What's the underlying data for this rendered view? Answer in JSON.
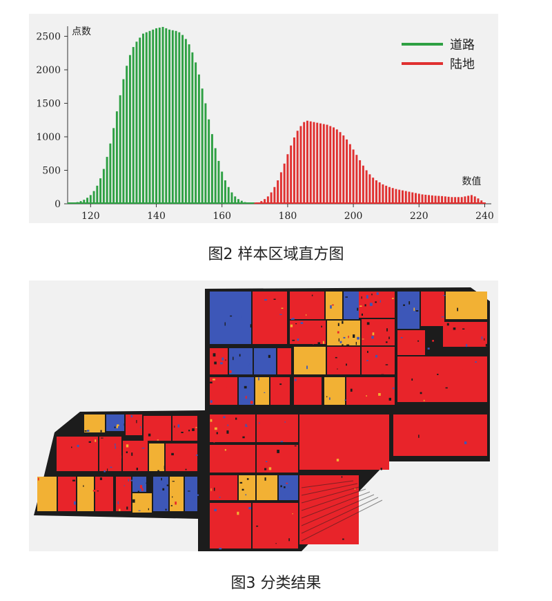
{
  "figure2": {
    "caption": "图2  样本区域直方图",
    "chart_data": {
      "type": "bar",
      "ylabel": "点数",
      "xlabel": "数值",
      "xlim": [
        113,
        242
      ],
      "ylim": [
        0,
        2650
      ],
      "xticks": [
        120,
        140,
        160,
        180,
        200,
        220,
        240
      ],
      "yticks": [
        0,
        500,
        1000,
        1500,
        2000,
        2500
      ],
      "legend_position": "top-right",
      "series": [
        {
          "name": "道路",
          "color": "#2ea043",
          "x": [
            113,
            114,
            115,
            116,
            117,
            118,
            119,
            120,
            121,
            122,
            123,
            124,
            125,
            126,
            127,
            128,
            129,
            130,
            131,
            132,
            133,
            134,
            135,
            136,
            137,
            138,
            139,
            140,
            141,
            142,
            143,
            144,
            145,
            146,
            147,
            148,
            149,
            150,
            151,
            152,
            153,
            154,
            155,
            156,
            157,
            158,
            159,
            160,
            161,
            162,
            163,
            164,
            165,
            166,
            167,
            168,
            169,
            170
          ],
          "values": [
            5,
            10,
            15,
            25,
            40,
            60,
            90,
            130,
            190,
            270,
            380,
            520,
            700,
            900,
            1130,
            1380,
            1620,
            1860,
            2060,
            2220,
            2340,
            2420,
            2480,
            2540,
            2560,
            2580,
            2600,
            2620,
            2630,
            2640,
            2620,
            2600,
            2590,
            2580,
            2560,
            2520,
            2460,
            2380,
            2260,
            2110,
            1930,
            1720,
            1500,
            1260,
            1040,
            830,
            640,
            480,
            350,
            250,
            170,
            110,
            70,
            45,
            25,
            15,
            8,
            4
          ]
        },
        {
          "name": "陆地",
          "color": "#e03030",
          "x": [
            170,
            171,
            172,
            173,
            174,
            175,
            176,
            177,
            178,
            179,
            180,
            181,
            182,
            183,
            184,
            185,
            186,
            187,
            188,
            189,
            190,
            191,
            192,
            193,
            194,
            195,
            196,
            197,
            198,
            199,
            200,
            201,
            202,
            203,
            204,
            205,
            206,
            207,
            208,
            209,
            210,
            211,
            212,
            213,
            214,
            215,
            216,
            217,
            218,
            219,
            220,
            221,
            222,
            223,
            224,
            225,
            226,
            227,
            228,
            229,
            230,
            231,
            232,
            233,
            234,
            235,
            236,
            237,
            238,
            239,
            240
          ],
          "values": [
            10,
            20,
            40,
            70,
            110,
            170,
            250,
            350,
            470,
            600,
            740,
            870,
            990,
            1090,
            1160,
            1220,
            1240,
            1230,
            1220,
            1210,
            1200,
            1190,
            1180,
            1160,
            1140,
            1110,
            1070,
            1020,
            960,
            890,
            810,
            730,
            650,
            570,
            500,
            440,
            390,
            350,
            320,
            290,
            270,
            250,
            235,
            220,
            210,
            200,
            190,
            180,
            170,
            160,
            150,
            140,
            135,
            130,
            125,
            120,
            118,
            115,
            110,
            105,
            100,
            100,
            100,
            100,
            110,
            120,
            130,
            110,
            80,
            50,
            20
          ]
        }
      ]
    }
  },
  "figure3": {
    "caption": "图3  分类结果",
    "colors": {
      "red": "#e8242a",
      "blue": "#3d57b8",
      "yellow": "#f2b134",
      "black": "#1c1c1c",
      "background": "#f1f1f1"
    }
  }
}
